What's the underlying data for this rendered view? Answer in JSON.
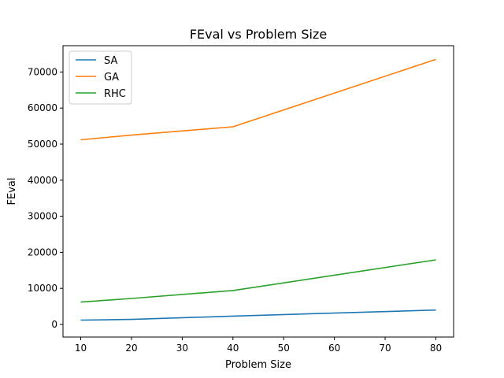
{
  "chart_data": {
    "type": "line",
    "title": "FEval vs Problem Size",
    "xlabel": "Problem Size",
    "ylabel": "FEval",
    "x": [
      10,
      20,
      40,
      80
    ],
    "xlim": [
      6.5,
      83.5
    ],
    "ylim": [
      -3500,
      77300
    ],
    "xticks": [
      10,
      20,
      30,
      40,
      50,
      60,
      70,
      80
    ],
    "yticks": [
      0,
      10000,
      20000,
      30000,
      40000,
      50000,
      60000,
      70000
    ],
    "grid": false,
    "legend_position": "top-left",
    "series": [
      {
        "name": "SA",
        "color": "#1f77b4",
        "values": [
          1200,
          1400,
          2300,
          4000
        ]
      },
      {
        "name": "GA",
        "color": "#ff7f0e",
        "values": [
          51200,
          52500,
          54800,
          73500
        ]
      },
      {
        "name": "RHC",
        "color": "#2ca02c",
        "values": [
          6200,
          7200,
          9400,
          17900
        ]
      }
    ]
  }
}
